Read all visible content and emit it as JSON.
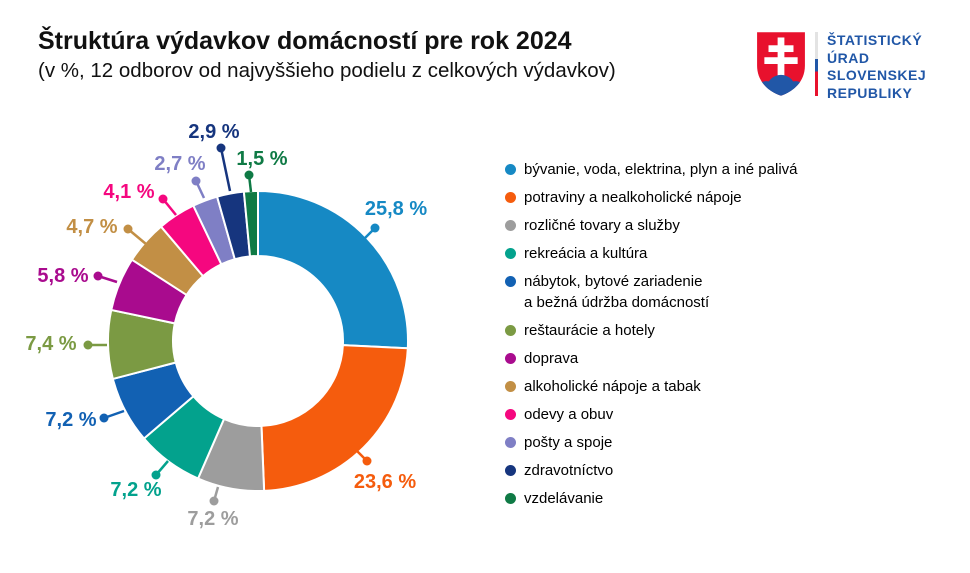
{
  "title": "Štruktúra výdavkov domácností pre rok 2024",
  "subtitle": "(v %, 12 odborov od najvyššieho podielu z celkových výdavkov)",
  "logo": {
    "lines": [
      "ŠTATISTICKÝ",
      "ÚRAD",
      "SLOVENSKEJ",
      "REPUBLIKY"
    ],
    "text_color": "#2157a7",
    "shield_red": "#e8112d",
    "shield_blue": "#2157a7"
  },
  "chart_data": {
    "type": "pie",
    "subtype": "donut",
    "title": "Štruktúra výdavkov domácností pre rok 2024",
    "unit": "%",
    "start_angle_deg": 0,
    "direction": "clockwise",
    "slices": [
      {
        "label": "bývanie, voda, elektrina, plyn a iné palivá",
        "value": 25.8,
        "display": "25,8 %",
        "color": "#1689c4"
      },
      {
        "label": "potraviny a nealkoholické nápoje",
        "value": 23.6,
        "display": "23,6 %",
        "color": "#f55c0d"
      },
      {
        "label": "rozličné tovary a služby",
        "value": 7.2,
        "display": "7,2 %",
        "color": "#9d9d9d"
      },
      {
        "label": "rekreácia a kultúra",
        "value": 7.2,
        "display": "7,2 %",
        "color": "#03a28d"
      },
      {
        "label": "nábytok, bytové zariadenie a bežná údržba domácností",
        "value": 7.2,
        "display": "7,2 %",
        "color": "#1261b3"
      },
      {
        "label": "reštaurácie a hotely",
        "value": 7.4,
        "display": "7,4 %",
        "color": "#7b9a43"
      },
      {
        "label": "doprava",
        "value": 5.8,
        "display": "5,8 %",
        "color": "#a90b8e"
      },
      {
        "label": "alkoholické nápoje a tabak",
        "value": 4.7,
        "display": "4,7 %",
        "color": "#c28f45"
      },
      {
        "label": "odevy a obuv",
        "value": 4.1,
        "display": "4,1 %",
        "color": "#f5077f"
      },
      {
        "label": "pošty a spoje",
        "value": 2.7,
        "display": "2,7 %",
        "color": "#7f7fc5"
      },
      {
        "label": "zdravotníctvo",
        "value": 2.9,
        "display": "2,9 %",
        "color": "#16357e"
      },
      {
        "label": "vzdelávanie",
        "value": 1.5,
        "display": "1,5 %",
        "color": "#0f7a45"
      }
    ]
  },
  "legend": {
    "items": [
      {
        "lines": [
          "bývanie, voda, elektrina, plyn a iné palivá"
        ],
        "color": "#1689c4"
      },
      {
        "lines": [
          "potraviny a nealkoholické nápoje"
        ],
        "color": "#f55c0d"
      },
      {
        "lines": [
          "rozličné tovary a služby"
        ],
        "color": "#9d9d9d"
      },
      {
        "lines": [
          "rekreácia a kultúra"
        ],
        "color": "#03a28d"
      },
      {
        "lines": [
          "nábytok, bytové zariadenie",
          "a bežná údržba domácností"
        ],
        "color": "#1261b3"
      },
      {
        "lines": [
          "reštaurácie a hotely"
        ],
        "color": "#7b9a43"
      },
      {
        "lines": [
          "doprava"
        ],
        "color": "#a90b8e"
      },
      {
        "lines": [
          "alkoholické nápoje a tabak"
        ],
        "color": "#c28f45"
      },
      {
        "lines": [
          "odevy a obuv"
        ],
        "color": "#f5077f"
      },
      {
        "lines": [
          "pošty a spoje"
        ],
        "color": "#7f7fc5"
      },
      {
        "lines": [
          "zdravotníctvo"
        ],
        "color": "#16357e"
      },
      {
        "lines": [
          "vzdelávanie"
        ],
        "color": "#0f7a45"
      }
    ]
  }
}
